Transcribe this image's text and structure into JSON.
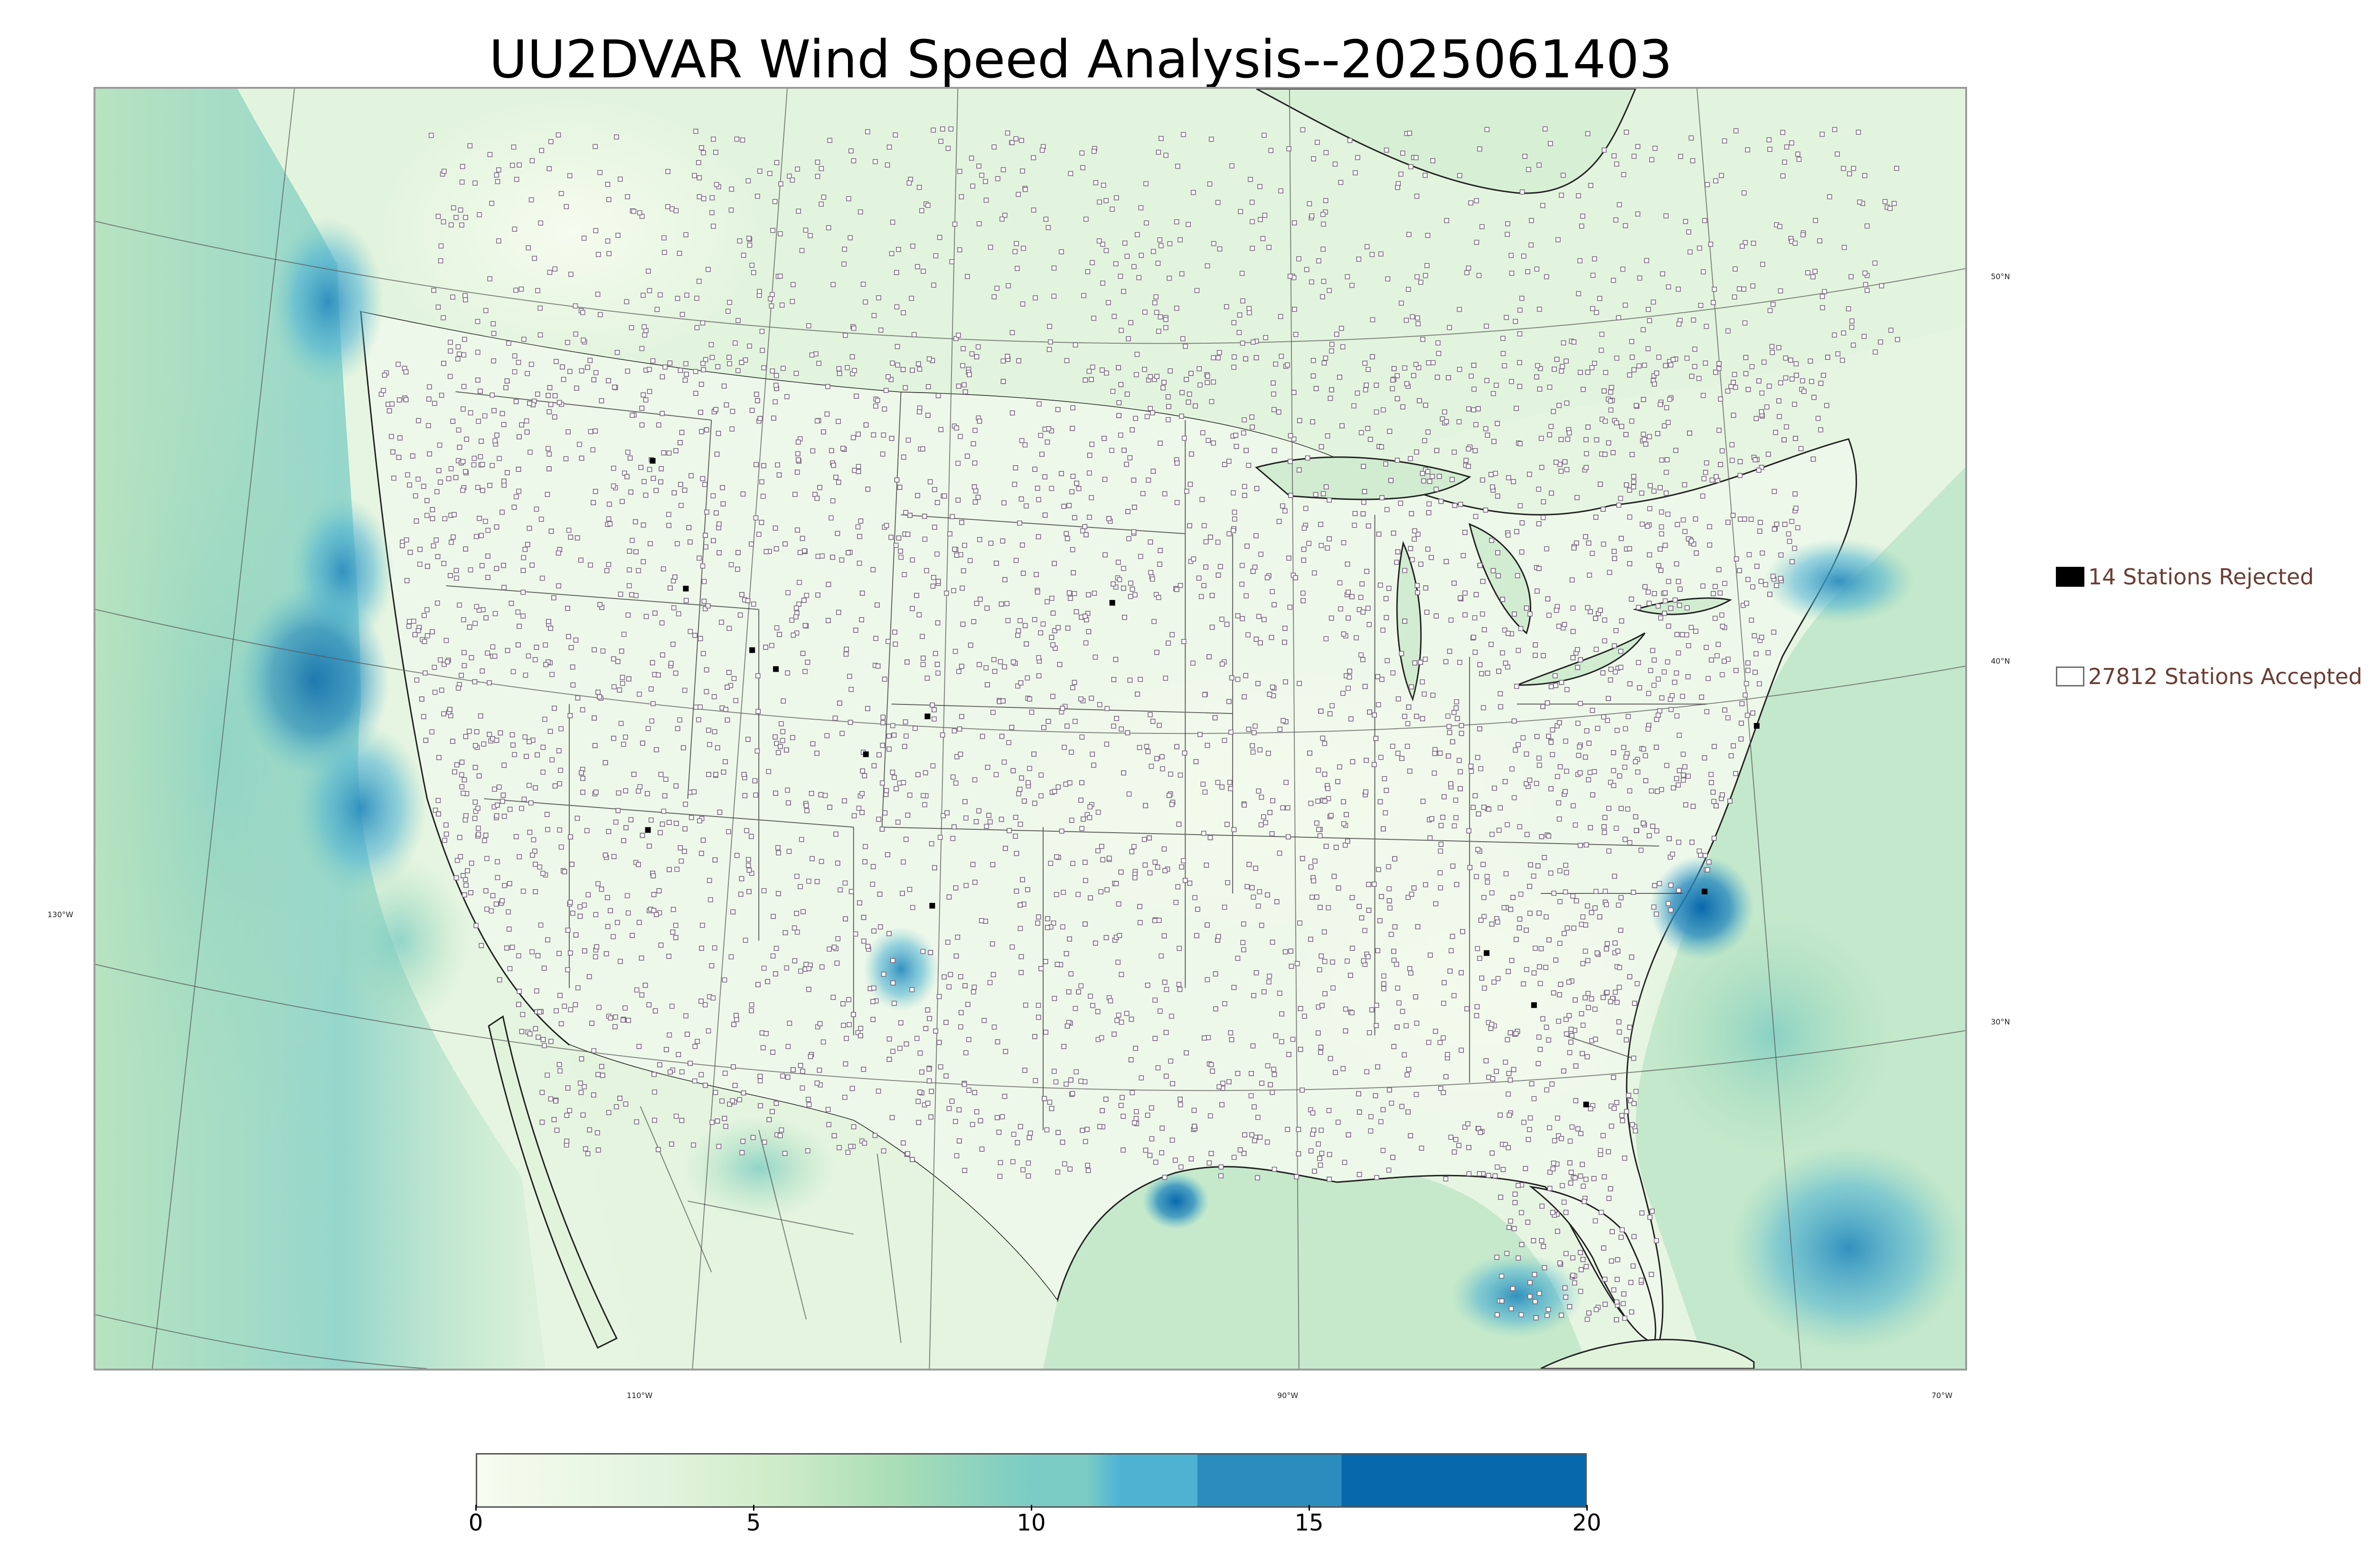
{
  "title": "UU2DVAR Wind Speed Analysis--2025061403",
  "map": {
    "projection": "Lambert Conformal (CONUS)",
    "lat_labels": [
      "50°N",
      "40°N",
      "30°N"
    ],
    "lon_labels": [
      "130°W",
      "110°W",
      "90°W",
      "70°W"
    ],
    "land_background": "#eaf6e5",
    "water_background": "#c9ebcf",
    "station_marker_color": "#7a6a80",
    "rejected_marker_color": "#000000"
  },
  "legend": {
    "rejected": {
      "label": "14 Stations Rejected"
    },
    "accepted": {
      "label": "27812 Stations Accepted"
    }
  },
  "colorbar": {
    "min": 0,
    "max": 20,
    "ticks": [
      "0",
      "5",
      "10",
      "15",
      "20"
    ],
    "colors": [
      "#f7fcf0",
      "#e0f3db",
      "#ccebc5",
      "#a8ddb5",
      "#7bccc4",
      "#4eb3d3",
      "#2b8cbe",
      "#0868ac"
    ]
  }
}
